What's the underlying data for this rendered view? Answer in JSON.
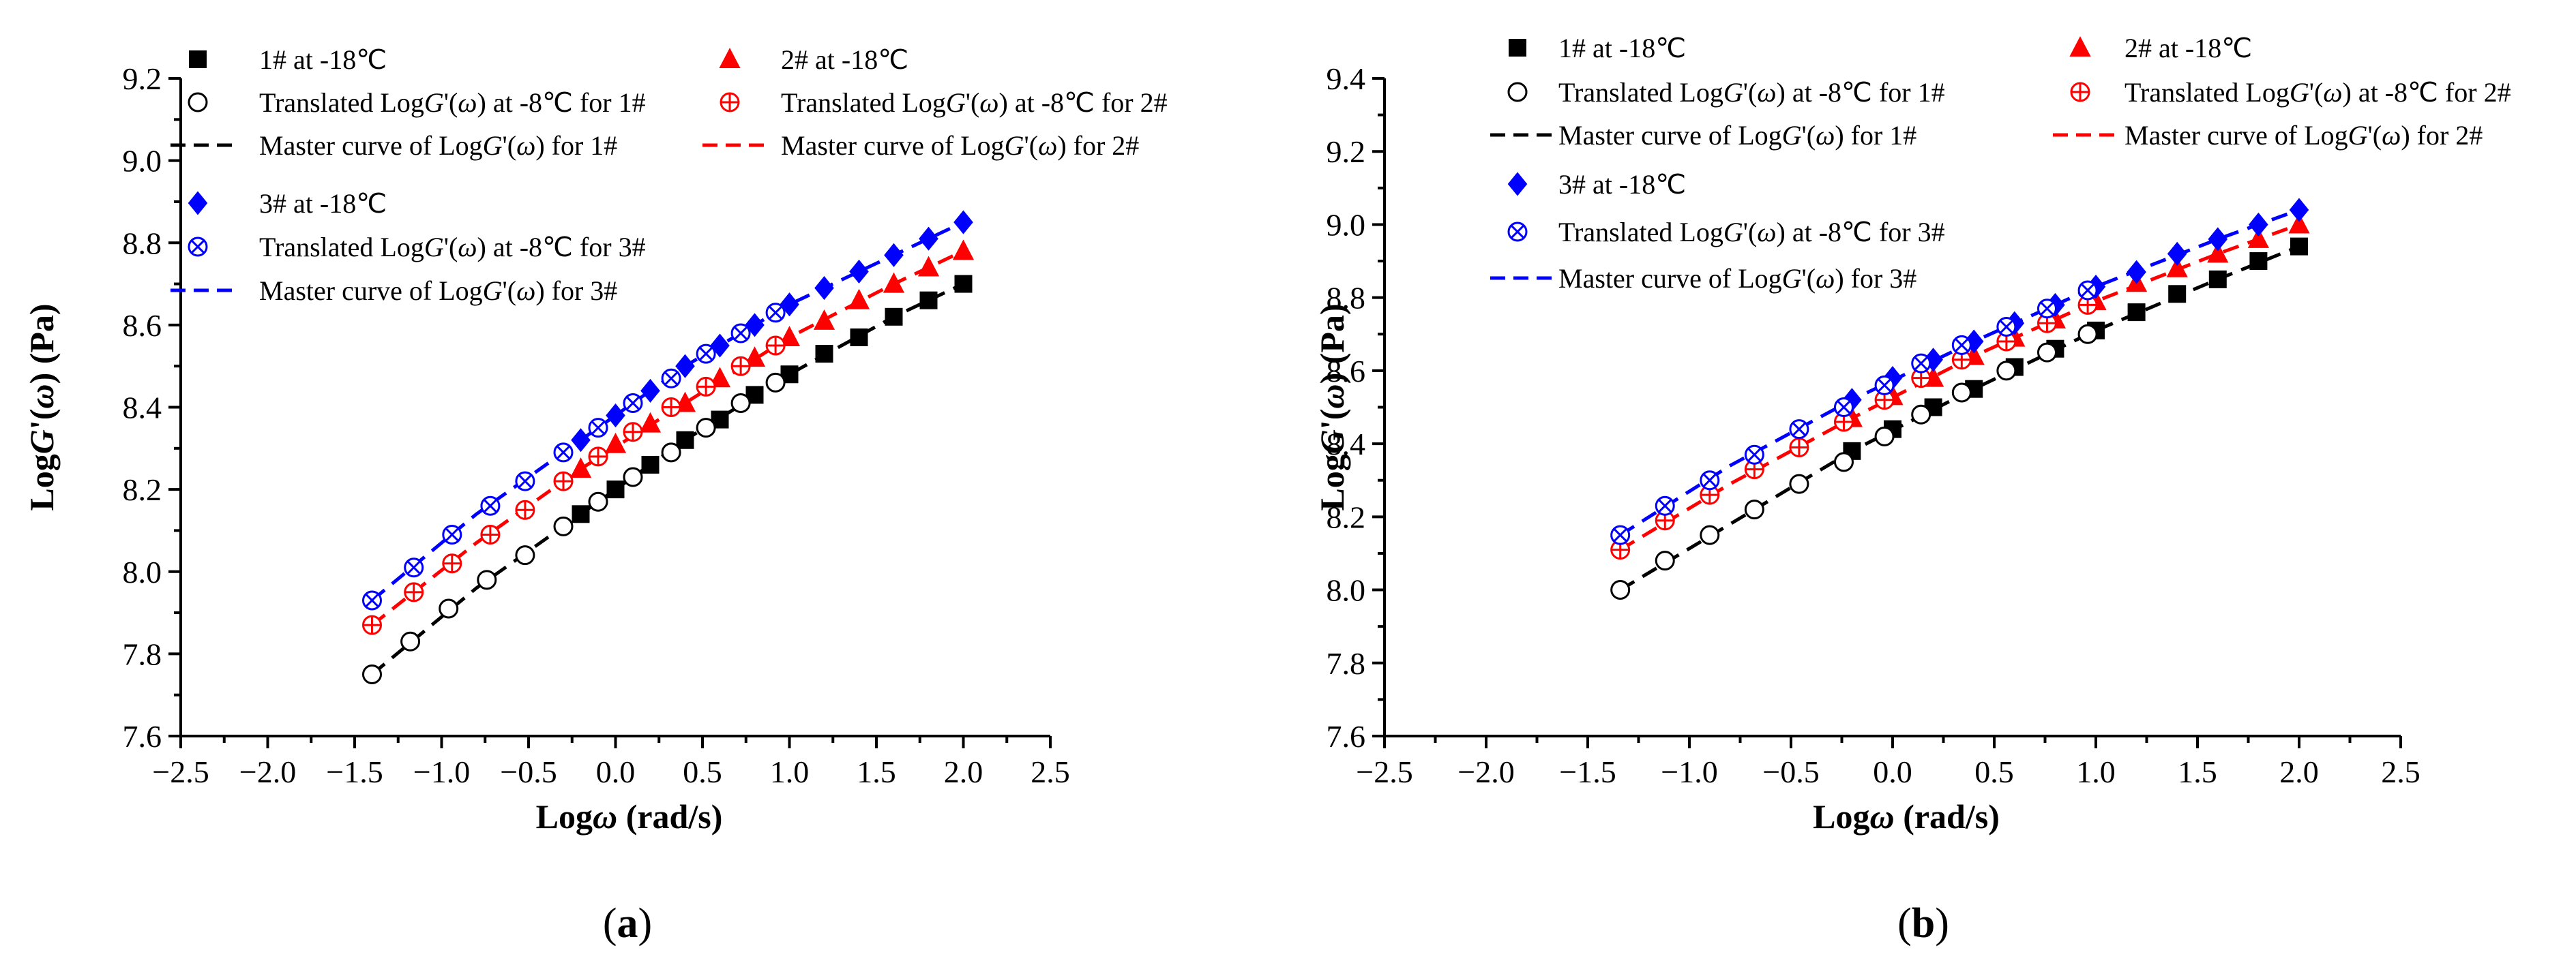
{
  "panels": [
    {
      "id": "a",
      "panel_label_prefix": "(",
      "panel_label_letter": "a",
      "panel_label_suffix": ")",
      "legend_entries": [
        {
          "text": "1# at -18℃"
        },
        {
          "text": "2# at -18℃"
        },
        {
          "text": "Translated LogG'(ω) at -8℃ for 1#"
        },
        {
          "text": "Translated LogG'(ω) at -8℃ for 2#"
        },
        {
          "text": "Master curve of LogG'(ω) for 1#"
        },
        {
          "text": "Master curve of LogG'(ω) for 2#"
        },
        {
          "text": "3# at -18℃"
        },
        {
          "text": "Translated LogG'(ω) at -8℃ for 3#"
        },
        {
          "text": "Master curve of LogG'(ω) for 3#"
        }
      ]
    },
    {
      "id": "b",
      "panel_label_prefix": "(",
      "panel_label_letter": "b",
      "panel_label_suffix": ")",
      "legend_entries": [
        {
          "text": "1# at -18℃"
        },
        {
          "text": "2# at -18℃"
        },
        {
          "text": "Translated LogG'(ω) at -8℃ for 1#"
        },
        {
          "text": "Translated LogG'(ω) at -8℃ for 2#"
        },
        {
          "text": "Master curve of LogG'(ω) for 1#"
        },
        {
          "text": "Master curve of LogG'(ω) for 2#"
        },
        {
          "text": "3# at -18℃"
        },
        {
          "text": "Translated LogG'(ω) at -8℃ for 3#"
        },
        {
          "text": "Master curve of LogG'(ω) for 3#"
        }
      ]
    }
  ],
  "chart_data": [
    {
      "type": "scatter",
      "title": "",
      "xlabel": "Logω (rad/s)",
      "ylabel": "LogG'(ω) (Pa)",
      "xlim": [
        -2.5,
        2.5
      ],
      "ylim": [
        7.6,
        9.2
      ],
      "xticks": [
        "−2.5",
        "−2.0",
        "−1.5",
        "−1.0",
        "−0.5",
        "0.0",
        "0.5",
        "1.0",
        "1.5",
        "2.0",
        "2.5"
      ],
      "yticks": [
        "7.6",
        "7.8",
        "8.0",
        "8.2",
        "8.4",
        "8.6",
        "8.8",
        "9.0",
        "9.2"
      ],
      "grid": false,
      "legend_position": "top-left",
      "colors": {
        "s1": "#000000",
        "s2": "#ff0000",
        "s3": "#0000ff"
      },
      "series": [
        {
          "name": "1# at -18℃",
          "marker": "square",
          "color": "#000000",
          "x": [
            -0.2,
            0.0,
            0.2,
            0.4,
            0.6,
            0.8,
            1.0,
            1.2,
            1.4,
            1.6,
            1.8,
            2.0
          ],
          "y": [
            8.14,
            8.2,
            8.26,
            8.32,
            8.37,
            8.43,
            8.48,
            8.53,
            8.57,
            8.62,
            8.66,
            8.7
          ]
        },
        {
          "name": "Translated LogG'(ω) at -8℃ for 1#",
          "marker": "circle",
          "color": "#000000",
          "x": [
            -1.4,
            -1.18,
            -0.96,
            -0.74,
            -0.52,
            -0.3,
            -0.1,
            0.1,
            0.32,
            0.52,
            0.72,
            0.92
          ],
          "y": [
            7.75,
            7.83,
            7.91,
            7.98,
            8.04,
            8.11,
            8.17,
            8.23,
            8.29,
            8.35,
            8.41,
            8.46
          ]
        },
        {
          "name": "Master curve of LogG'(ω) for 1#",
          "marker": "dash",
          "color": "#000000",
          "x": [
            -1.4,
            -0.8,
            -0.2,
            0.4,
            1.0,
            1.6,
            2.0
          ],
          "y": [
            7.75,
            7.96,
            8.14,
            8.32,
            8.48,
            8.62,
            8.7
          ]
        },
        {
          "name": "2# at -18℃",
          "marker": "triangle",
          "color": "#ff0000",
          "x": [
            -0.2,
            0.0,
            0.2,
            0.4,
            0.6,
            0.8,
            1.0,
            1.2,
            1.4,
            1.6,
            1.8,
            2.0
          ],
          "y": [
            8.25,
            8.31,
            8.36,
            8.41,
            8.47,
            8.52,
            8.57,
            8.61,
            8.66,
            8.7,
            8.74,
            8.78
          ]
        },
        {
          "name": "Translated LogG'(ω) at -8℃ for 2#",
          "marker": "circle-plus",
          "color": "#ff0000",
          "x": [
            -1.4,
            -1.16,
            -0.94,
            -0.72,
            -0.52,
            -0.3,
            -0.1,
            0.1,
            0.32,
            0.52,
            0.72,
            0.92
          ],
          "y": [
            7.87,
            7.95,
            8.02,
            8.09,
            8.15,
            8.22,
            8.28,
            8.34,
            8.4,
            8.45,
            8.5,
            8.55
          ]
        },
        {
          "name": "Master curve of LogG'(ω) for 2#",
          "marker": "dash",
          "color": "#ff0000",
          "x": [
            -1.4,
            -0.8,
            -0.2,
            0.4,
            1.0,
            1.6,
            2.0
          ],
          "y": [
            7.87,
            8.07,
            8.25,
            8.41,
            8.57,
            8.7,
            8.78
          ]
        },
        {
          "name": "3# at -18℃",
          "marker": "diamond",
          "color": "#0000ff",
          "x": [
            -0.2,
            0.0,
            0.2,
            0.4,
            0.6,
            0.8,
            1.0,
            1.2,
            1.4,
            1.6,
            1.8,
            2.0
          ],
          "y": [
            8.32,
            8.38,
            8.44,
            8.5,
            8.55,
            8.6,
            8.65,
            8.69,
            8.73,
            8.77,
            8.81,
            8.85
          ]
        },
        {
          "name": "Translated LogG'(ω) at -8℃ for 3#",
          "marker": "circle-x",
          "color": "#0000ff",
          "x": [
            -1.4,
            -1.16,
            -0.94,
            -0.72,
            -0.52,
            -0.3,
            -0.1,
            0.1,
            0.32,
            0.52,
            0.72,
            0.92
          ],
          "y": [
            7.93,
            8.01,
            8.09,
            8.16,
            8.22,
            8.29,
            8.35,
            8.41,
            8.47,
            8.53,
            8.58,
            8.63
          ]
        },
        {
          "name": "Master curve of LogG'(ω) for 3#",
          "marker": "dash",
          "color": "#0000ff",
          "x": [
            -1.4,
            -0.8,
            -0.2,
            0.4,
            1.0,
            1.6,
            2.0
          ],
          "y": [
            7.93,
            8.14,
            8.32,
            8.5,
            8.65,
            8.77,
            8.85
          ]
        }
      ]
    },
    {
      "type": "scatter",
      "title": "",
      "xlabel": "Logω (rad/s)",
      "ylabel": "LogG'(ω) (Pa)",
      "xlim": [
        -2.5,
        2.5
      ],
      "ylim": [
        7.6,
        9.4
      ],
      "xticks": [
        "−2.5",
        "−2.0",
        "−1.5",
        "−1.0",
        "−0.5",
        "0.0",
        "0.5",
        "1.0",
        "1.5",
        "2.0",
        "2.5"
      ],
      "yticks": [
        "7.6",
        "7.8",
        "8.0",
        "8.2",
        "8.4",
        "8.6",
        "8.8",
        "9.0",
        "9.2",
        "9.4"
      ],
      "grid": false,
      "legend_position": "top",
      "colors": {
        "s1": "#000000",
        "s2": "#ff0000",
        "s3": "#0000ff"
      },
      "series": [
        {
          "name": "1# at -18℃",
          "marker": "square",
          "color": "#000000",
          "x": [
            -0.2,
            0.0,
            0.2,
            0.4,
            0.6,
            0.8,
            1.0,
            1.2,
            1.4,
            1.6,
            1.8,
            2.0
          ],
          "y": [
            8.38,
            8.44,
            8.5,
            8.55,
            8.61,
            8.66,
            8.71,
            8.76,
            8.81,
            8.85,
            8.9,
            8.94
          ]
        },
        {
          "name": "Translated LogG'(ω) at -8℃ for 1#",
          "marker": "circle",
          "color": "#000000",
          "x": [
            -1.34,
            -1.12,
            -0.9,
            -0.68,
            -0.46,
            -0.24,
            -0.04,
            0.14,
            0.34,
            0.56,
            0.76,
            0.96
          ],
          "y": [
            8.0,
            8.08,
            8.15,
            8.22,
            8.29,
            8.35,
            8.42,
            8.48,
            8.54,
            8.6,
            8.65,
            8.7
          ]
        },
        {
          "name": "Master curve of LogG'(ω) for 1#",
          "marker": "dash",
          "color": "#000000",
          "x": [
            -1.34,
            -0.8,
            -0.2,
            0.4,
            1.0,
            1.6,
            2.0
          ],
          "y": [
            8.0,
            8.18,
            8.38,
            8.55,
            8.71,
            8.85,
            8.94
          ]
        },
        {
          "name": "2# at -18℃",
          "marker": "triangle",
          "color": "#ff0000",
          "x": [
            -0.2,
            0.0,
            0.2,
            0.4,
            0.6,
            0.8,
            1.0,
            1.2,
            1.4,
            1.6,
            1.8,
            2.0
          ],
          "y": [
            8.47,
            8.53,
            8.58,
            8.64,
            8.69,
            8.74,
            8.79,
            8.84,
            8.88,
            8.92,
            8.96,
            9.0
          ]
        },
        {
          "name": "Translated LogG'(ω) at -8℃ for 2#",
          "marker": "circle-plus",
          "color": "#ff0000",
          "x": [
            -1.34,
            -1.12,
            -0.9,
            -0.68,
            -0.46,
            -0.24,
            -0.04,
            0.14,
            0.34,
            0.56,
            0.76,
            0.96
          ],
          "y": [
            8.11,
            8.19,
            8.26,
            8.33,
            8.39,
            8.46,
            8.52,
            8.58,
            8.63,
            8.68,
            8.73,
            8.78
          ]
        },
        {
          "name": "Master curve of LogG'(ω) for 2#",
          "marker": "dash",
          "color": "#ff0000",
          "x": [
            -1.34,
            -0.8,
            -0.2,
            0.4,
            1.0,
            1.6,
            2.0
          ],
          "y": [
            8.11,
            8.29,
            8.47,
            8.64,
            8.79,
            8.92,
            9.0
          ]
        },
        {
          "name": "3# at -18℃",
          "marker": "diamond",
          "color": "#0000ff",
          "x": [
            -0.2,
            0.0,
            0.2,
            0.4,
            0.6,
            0.8,
            1.0,
            1.2,
            1.4,
            1.6,
            1.8,
            2.0
          ],
          "y": [
            8.52,
            8.58,
            8.63,
            8.68,
            8.73,
            8.78,
            8.83,
            8.87,
            8.92,
            8.96,
            9.0,
            9.04
          ]
        },
        {
          "name": "Translated LogG'(ω) at -8℃ for 3#",
          "marker": "circle-x",
          "color": "#0000ff",
          "x": [
            -1.34,
            -1.12,
            -0.9,
            -0.68,
            -0.46,
            -0.24,
            -0.04,
            0.14,
            0.34,
            0.56,
            0.76,
            0.96
          ],
          "y": [
            8.15,
            8.23,
            8.3,
            8.37,
            8.44,
            8.5,
            8.56,
            8.62,
            8.67,
            8.72,
            8.77,
            8.82
          ]
        },
        {
          "name": "Master curve of LogG'(ω) for 3#",
          "marker": "dash",
          "color": "#0000ff",
          "x": [
            -1.34,
            -0.8,
            -0.2,
            0.4,
            1.0,
            1.6,
            2.0
          ],
          "y": [
            8.15,
            8.34,
            8.52,
            8.68,
            8.83,
            8.96,
            9.04
          ]
        }
      ]
    }
  ]
}
